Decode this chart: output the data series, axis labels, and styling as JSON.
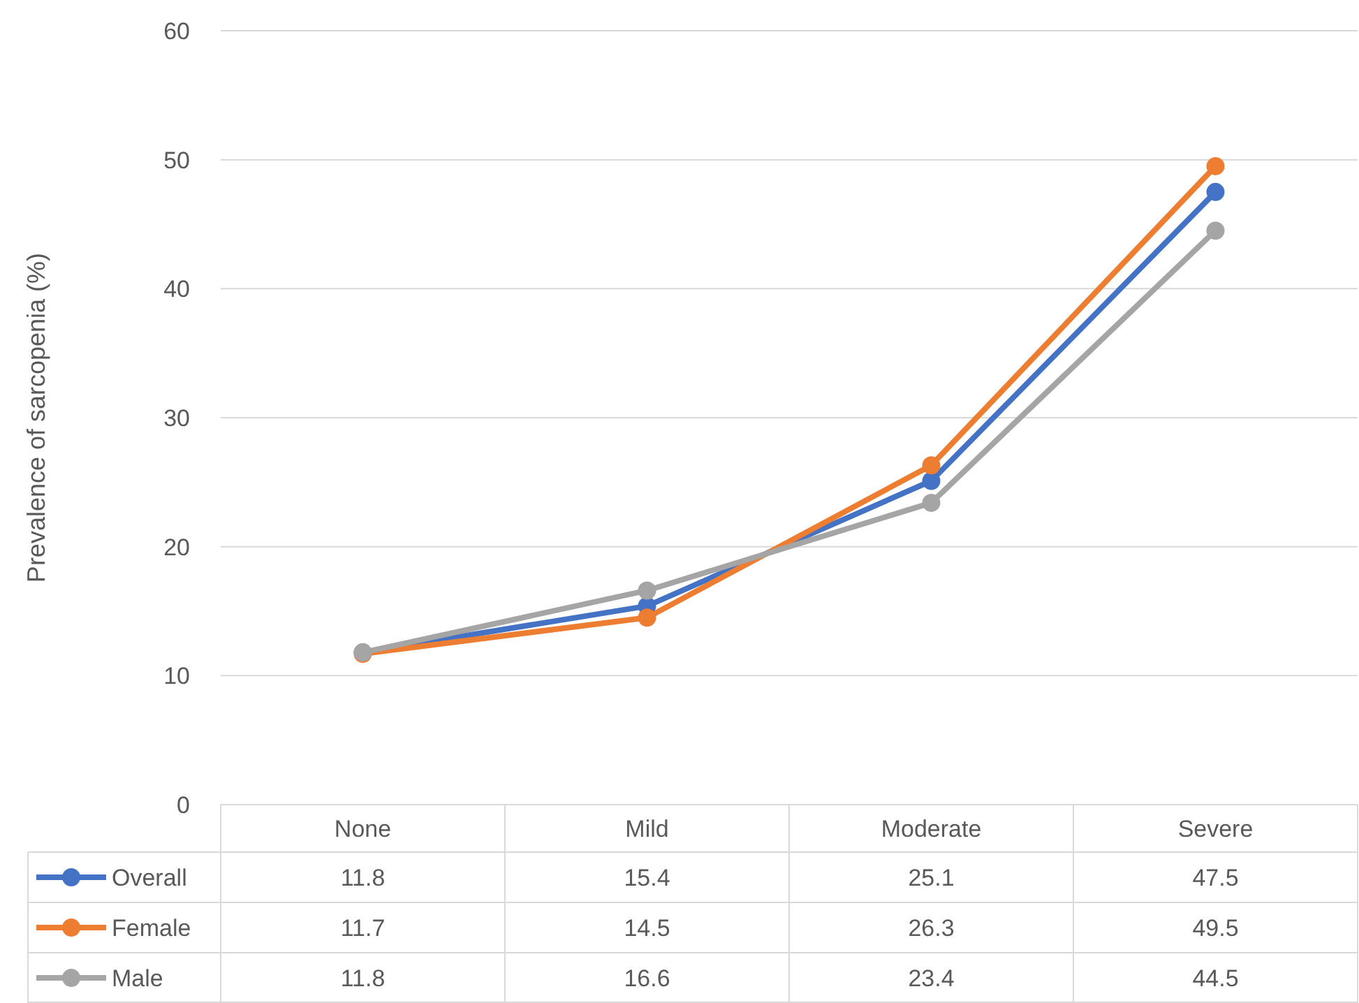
{
  "chart_data": {
    "type": "line",
    "ylabel": "Prevalence of sarcopenia (%)",
    "categories": [
      "None",
      "Mild",
      "Moderate",
      "Severe"
    ],
    "series": [
      {
        "name": "Overall",
        "color": "#4472c4",
        "values": [
          11.8,
          15.4,
          25.1,
          47.5
        ]
      },
      {
        "name": "Female",
        "color": "#ed7d31",
        "values": [
          11.7,
          14.5,
          26.3,
          49.5
        ]
      },
      {
        "name": "Male",
        "color": "#a5a5a5",
        "values": [
          11.8,
          16.6,
          23.4,
          44.5
        ]
      }
    ],
    "ylim": [
      0,
      60
    ],
    "yticks": [
      0,
      10,
      20,
      30,
      40,
      50,
      60
    ],
    "grid": "y",
    "legend": "bottom left",
    "marker": "circle",
    "line_style": "solid",
    "data_labels": true
  }
}
